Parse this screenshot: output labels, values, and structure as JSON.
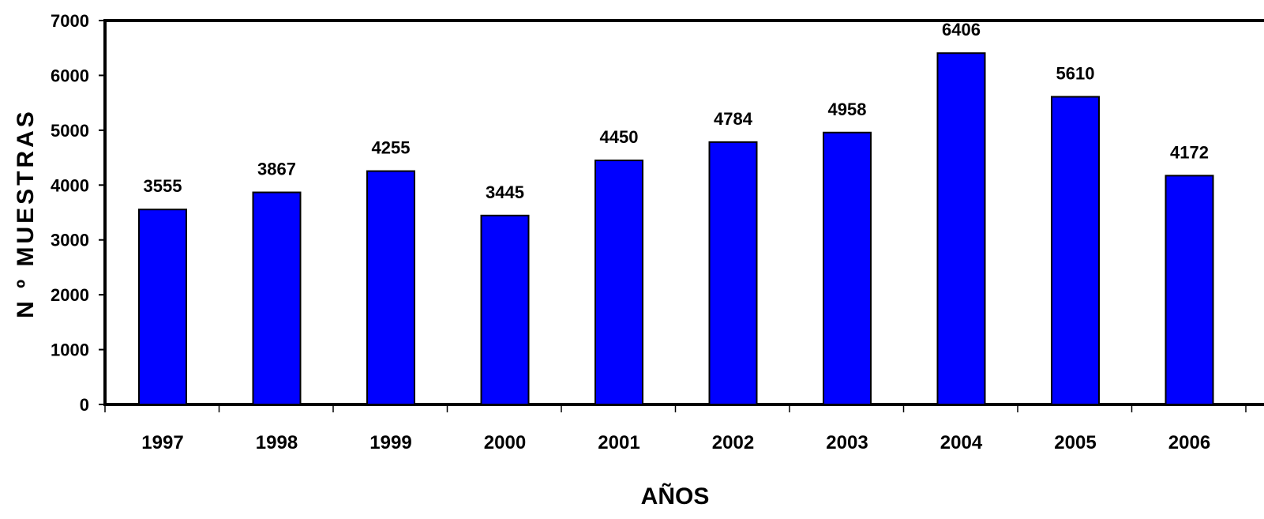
{
  "chart_data": {
    "type": "bar",
    "title": "",
    "xlabel": "AÑOS",
    "ylabel": "N º MUESTRAS",
    "categories": [
      "1997",
      "1998",
      "1999",
      "2000",
      "2001",
      "2002",
      "2003",
      "2004",
      "2005",
      "2006"
    ],
    "values": [
      3555,
      3867,
      4255,
      3445,
      4450,
      4784,
      4958,
      6406,
      5610,
      4172
    ],
    "data_labels": [
      "3555",
      "3867",
      "4255",
      "3445",
      "4450",
      "4784",
      "4958",
      "6406",
      "5610",
      "4172"
    ],
    "ylim": [
      0,
      7000
    ],
    "yticks": [
      0,
      1000,
      2000,
      3000,
      4000,
      5000,
      6000,
      7000
    ],
    "ytick_labels": [
      "0",
      "1000",
      "2000",
      "3000",
      "4000",
      "5000",
      "6000",
      "7000"
    ],
    "grid": false,
    "legend": "none",
    "bar_color": "#0000ff",
    "bar_edge_color": "#000000"
  }
}
